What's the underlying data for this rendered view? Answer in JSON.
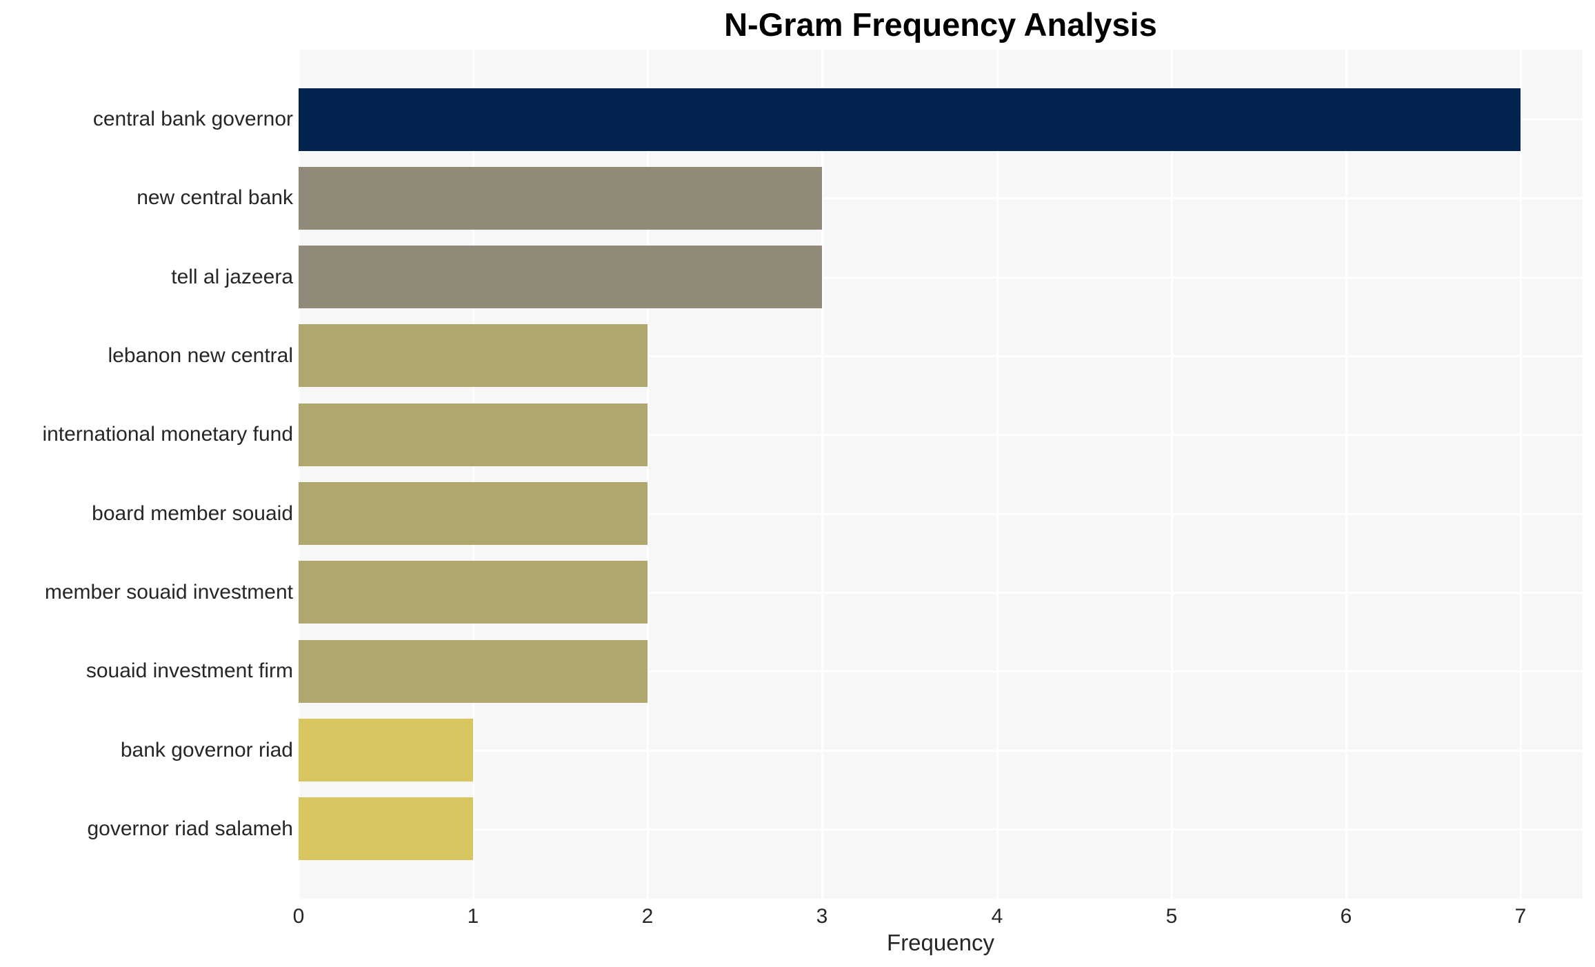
{
  "chart_data": {
    "type": "bar",
    "orientation": "horizontal",
    "title": "N-Gram Frequency Analysis",
    "xlabel": "Frequency",
    "ylabel": "",
    "categories": [
      "central bank governor",
      "new central bank",
      "tell al jazeera",
      "lebanon new central",
      "international monetary fund",
      "board member souaid",
      "member souaid investment",
      "souaid investment firm",
      "bank governor riad",
      "governor riad salameh"
    ],
    "values": [
      7,
      3,
      3,
      2,
      2,
      2,
      2,
      2,
      1,
      1
    ],
    "bar_colors": [
      "#02234e",
      "#918a78",
      "#918a78",
      "#b0a76e",
      "#b0a76e",
      "#b0a76e",
      "#b0a76e",
      "#b0a76e",
      "#d9c55f",
      "#d9c55f"
    ],
    "xticks": [
      0,
      1,
      2,
      3,
      4,
      5,
      6,
      7
    ],
    "xlim": [
      0,
      7.35
    ],
    "grid": true,
    "legend": false,
    "colors": {
      "plot_background": "#f7f7f7",
      "gridline": "#ffffff",
      "tick_text": "#262626",
      "title_text": "#000000"
    }
  }
}
